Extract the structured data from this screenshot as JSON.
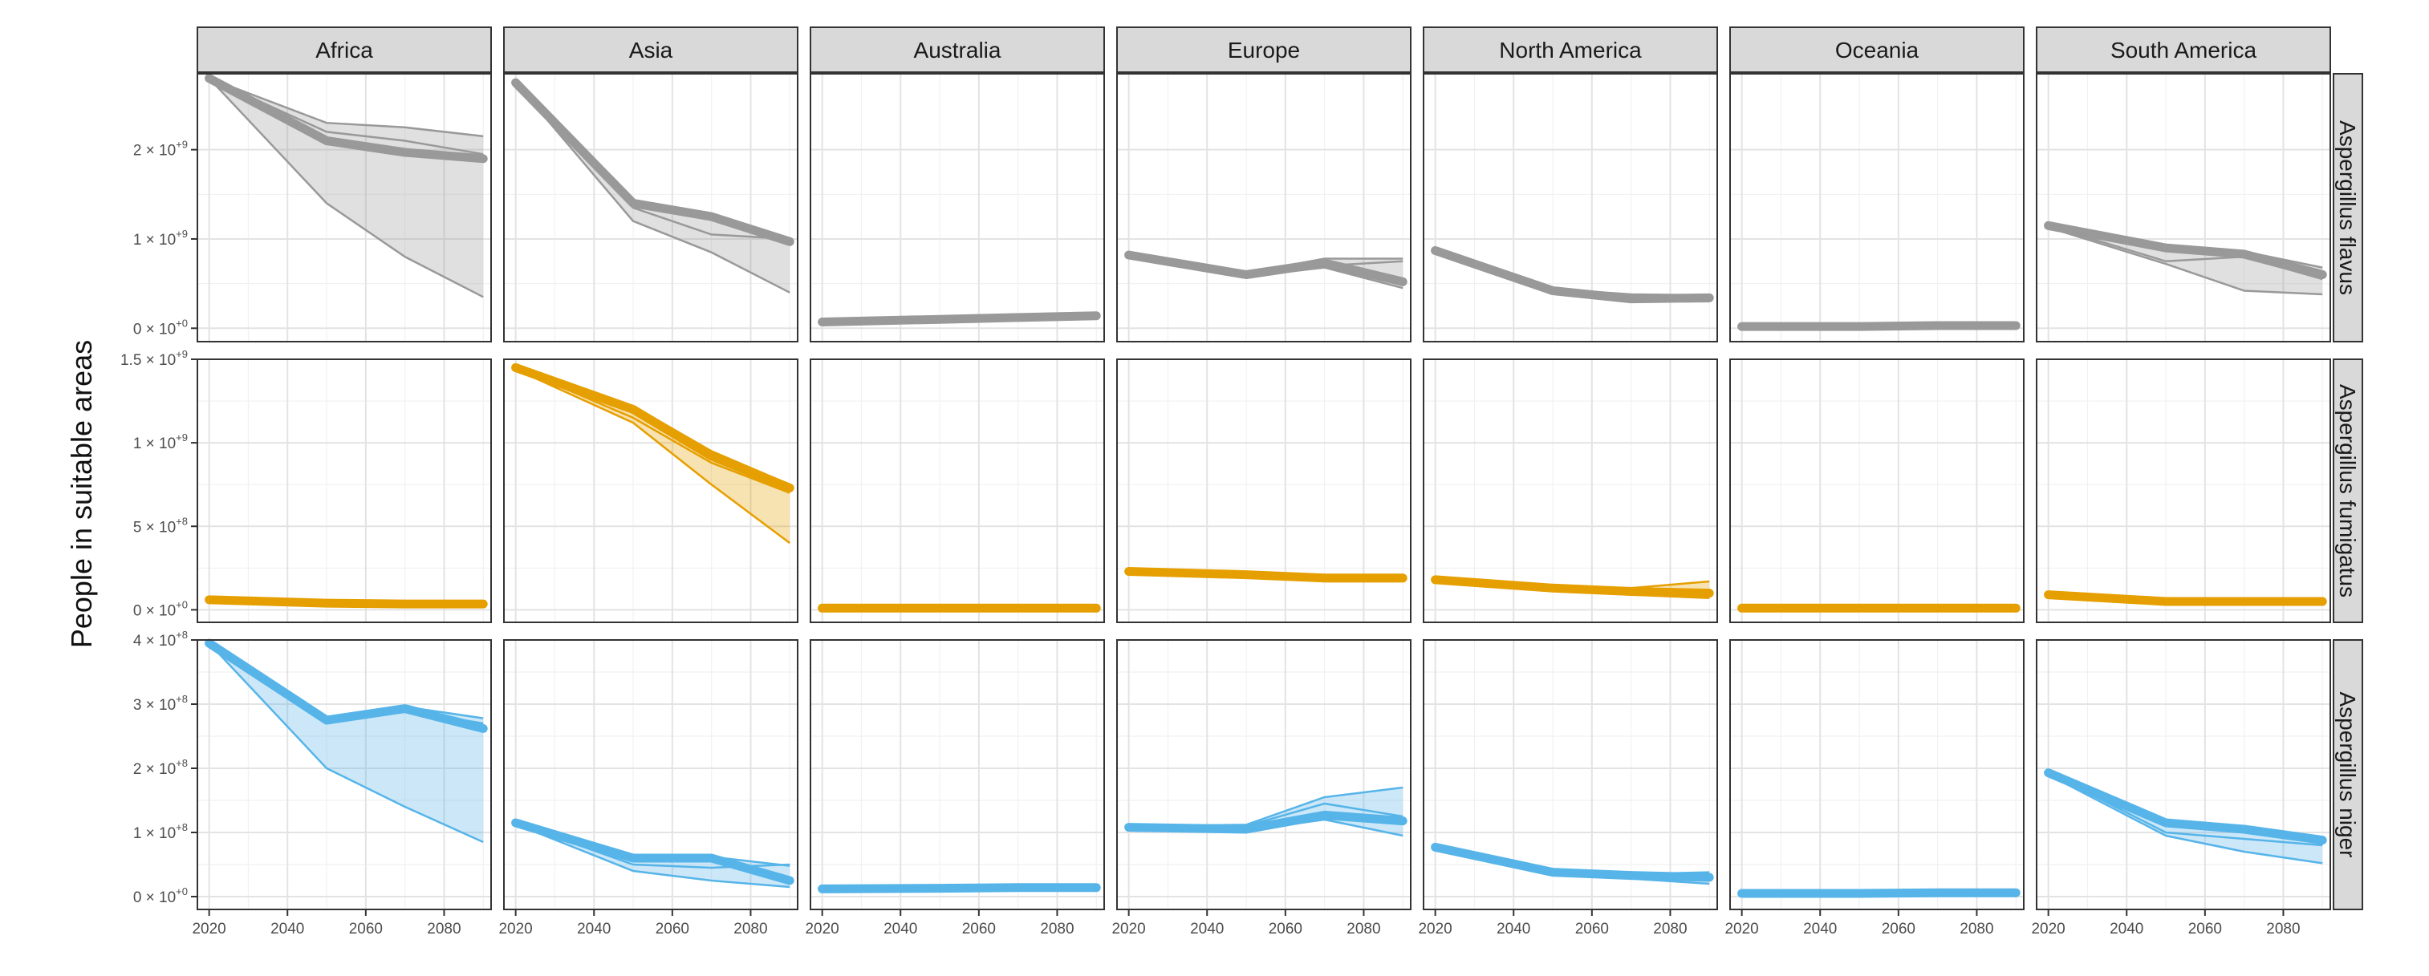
{
  "chart_data": {
    "type": "line",
    "ylabel": "People in suitable areas",
    "xlabel": "",
    "x_ticks": [
      "2020",
      "2040",
      "2060",
      "2080"
    ],
    "xlim": [
      2017,
      2092
    ],
    "x": [
      2020,
      2050,
      2070,
      2090
    ],
    "columns": [
      "Africa",
      "Asia",
      "Australia",
      "Europe",
      "North America",
      "Oceania",
      "South America"
    ],
    "rows": [
      {
        "name": "Aspergillus flavus",
        "color": "#999999",
        "ylim": [
          -150000000.0,
          2850000000.0
        ],
        "y_ticks": [
          {
            "value": 0,
            "mantissa": "0",
            "exponent": "+0"
          },
          {
            "value": 1000000000.0,
            "mantissa": "1",
            "exponent": "+9"
          },
          {
            "value": 2000000000.0,
            "mantissa": "2",
            "exponent": "+9"
          }
        ],
        "series": {
          "Africa": {
            "mean": [
              2800000000.0,
              2100000000.0,
              1970000000.0,
              1900000000.0
            ],
            "low": [
              2800000000.0,
              1400000000.0,
              800000000.0,
              350000000.0
            ],
            "high": [
              2800000000.0,
              2300000000.0,
              2250000000.0,
              2150000000.0
            ],
            "extra": [
              2800000000.0,
              2200000000.0,
              2100000000.0,
              1950000000.0
            ]
          },
          "Asia": {
            "mean": [
              2750000000.0,
              1400000000.0,
              1250000000.0,
              970000000.0
            ],
            "low": [
              2750000000.0,
              1200000000.0,
              850000000.0,
              400000000.0
            ],
            "high": [
              2750000000.0,
              1420000000.0,
              1280000000.0,
              1000000000.0
            ],
            "extra": [
              2750000000.0,
              1350000000.0,
              1050000000.0,
              1000000000.0
            ]
          },
          "Australia": {
            "mean": [
              70000000.0,
              100000000.0,
              120000000.0,
              140000000.0
            ],
            "low": [
              60000000.0,
              90000000.0,
              100000000.0,
              120000000.0
            ],
            "high": [
              80000000.0,
              120000000.0,
              140000000.0,
              160000000.0
            ],
            "extra": null
          },
          "Europe": {
            "mean": [
              820000000.0,
              600000000.0,
              730000000.0,
              520000000.0
            ],
            "low": [
              800000000.0,
              580000000.0,
              680000000.0,
              450000000.0
            ],
            "high": [
              840000000.0,
              620000000.0,
              780000000.0,
              780000000.0
            ],
            "extra": [
              820000000.0,
              600000000.0,
              700000000.0,
              750000000.0
            ]
          },
          "North America": {
            "mean": [
              870000000.0,
              420000000.0,
              330000000.0,
              340000000.0
            ],
            "low": [
              850000000.0,
              400000000.0,
              300000000.0,
              300000000.0
            ],
            "high": [
              890000000.0,
              440000000.0,
              380000000.0,
              370000000.0
            ],
            "extra": null
          },
          "Oceania": {
            "mean": [
              20000000.0,
              20000000.0,
              30000000.0,
              30000000.0
            ],
            "low": [
              10000000.0,
              10000000.0,
              20000000.0,
              20000000.0
            ],
            "high": [
              30000000.0,
              30000000.0,
              40000000.0,
              40000000.0
            ],
            "extra": null
          },
          "South America": {
            "mean": [
              1150000000.0,
              900000000.0,
              830000000.0,
              600000000.0
            ],
            "low": [
              1130000000.0,
              720000000.0,
              420000000.0,
              380000000.0
            ],
            "high": [
              1170000000.0,
              920000000.0,
              860000000.0,
              680000000.0
            ],
            "extra": [
              1150000000.0,
              750000000.0,
              800000000.0,
              550000000.0
            ]
          }
        }
      },
      {
        "name": "Aspergillus fumigatus",
        "color": "#E69F00",
        "ylim": [
          -75000000.0,
          1500000000.0
        ],
        "y_ticks": [
          {
            "value": 0,
            "mantissa": "0",
            "exponent": "+0"
          },
          {
            "value": 500000000.0,
            "mantissa": "5",
            "exponent": "+8"
          },
          {
            "value": 1000000000.0,
            "mantissa": "1",
            "exponent": "+9"
          },
          {
            "value": 1500000000.0,
            "mantissa": "1.5",
            "exponent": "+9"
          }
        ],
        "series": {
          "Africa": {
            "mean": [
              60000000.0,
              40000000.0,
              35000000.0,
              35000000.0
            ],
            "low": [
              50000000.0,
              30000000.0,
              30000000.0,
              30000000.0
            ],
            "high": [
              70000000.0,
              50000000.0,
              45000000.0,
              45000000.0
            ],
            "extra": null
          },
          "Asia": {
            "mean": [
              1450000000.0,
              1200000000.0,
              920000000.0,
              730000000.0
            ],
            "low": [
              1440000000.0,
              1120000000.0,
              750000000.0,
              400000000.0
            ],
            "high": [
              1460000000.0,
              1220000000.0,
              950000000.0,
              750000000.0
            ],
            "extra": [
              1450000000.0,
              1150000000.0,
              880000000.0,
              700000000.0
            ]
          },
          "Australia": {
            "mean": [
              10000000.0,
              10000000.0,
              10000000.0,
              10000000.0
            ],
            "low": [
              5000000.0,
              5000000.0,
              5000000.0,
              5000000.0
            ],
            "high": [
              15000000.0,
              15000000.0,
              15000000.0,
              15000000.0
            ],
            "extra": null
          },
          "Europe": {
            "mean": [
              230000000.0,
              210000000.0,
              190000000.0,
              190000000.0
            ],
            "low": [
              220000000.0,
              200000000.0,
              170000000.0,
              170000000.0
            ],
            "high": [
              240000000.0,
              220000000.0,
              210000000.0,
              200000000.0
            ],
            "extra": null
          },
          "North America": {
            "mean": [
              180000000.0,
              130000000.0,
              110000000.0,
              100000000.0
            ],
            "low": [
              170000000.0,
              120000000.0,
              90000000.0,
              70000000.0
            ],
            "high": [
              190000000.0,
              140000000.0,
              130000000.0,
              170000000.0
            ],
            "extra": null
          },
          "Oceania": {
            "mean": [
              10000000.0,
              10000000.0,
              10000000.0,
              10000000.0
            ],
            "low": [
              5000000.0,
              5000000.0,
              5000000.0,
              5000000.0
            ],
            "high": [
              15000000.0,
              15000000.0,
              15000000.0,
              15000000.0
            ],
            "extra": null
          },
          "South America": {
            "mean": [
              90000000.0,
              50000000.0,
              50000000.0,
              50000000.0
            ],
            "low": [
              80000000.0,
              40000000.0,
              40000000.0,
              40000000.0
            ],
            "high": [
              100000000.0,
              60000000.0,
              60000000.0,
              60000000.0
            ],
            "extra": null
          }
        }
      },
      {
        "name": "Aspergillus niger",
        "color": "#56B4E9",
        "ylim": [
          -20000000.0,
          400000000.0
        ],
        "y_ticks": [
          {
            "value": 0,
            "mantissa": "0",
            "exponent": "+0"
          },
          {
            "value": 100000000.0,
            "mantissa": "1",
            "exponent": "+8"
          },
          {
            "value": 200000000.0,
            "mantissa": "2",
            "exponent": "+8"
          },
          {
            "value": 300000000.0,
            "mantissa": "3",
            "exponent": "+8"
          },
          {
            "value": 400000000.0,
            "mantissa": "4",
            "exponent": "+8"
          }
        ],
        "series": {
          "Africa": {
            "mean": [
              395000000.0,
              275000000.0,
              293000000.0,
              262000000.0
            ],
            "low": [
              395000000.0,
              200000000.0,
              140000000.0,
              85000000.0
            ],
            "high": [
              395000000.0,
              278000000.0,
              296000000.0,
              278000000.0
            ],
            "extra": [
              395000000.0,
              270000000.0,
              290000000.0,
              270000000.0
            ]
          },
          "Asia": {
            "mean": [
              115000000.0,
              60000000.0,
              60000000.0,
              25000000.0
            ],
            "low": [
              113000000.0,
              40000000.0,
              25000000.0,
              15000000.0
            ],
            "high": [
              117000000.0,
              62000000.0,
              62000000.0,
              48000000.0
            ],
            "extra": [
              115000000.0,
              50000000.0,
              45000000.0,
              50000000.0
            ]
          },
          "Australia": {
            "mean": [
              12000000.0,
              13000000.0,
              14000000.0,
              14000000.0
            ],
            "low": [
              10000000.0,
              11000000.0,
              12000000.0,
              12000000.0
            ],
            "high": [
              14000000.0,
              15000000.0,
              16000000.0,
              16000000.0
            ],
            "extra": null
          },
          "Europe": {
            "mean": [
              108000000.0,
              105000000.0,
              127000000.0,
              118000000.0
            ],
            "low": [
              106000000.0,
              103000000.0,
              120000000.0,
              95000000.0
            ],
            "high": [
              110000000.0,
              112000000.0,
              155000000.0,
              170000000.0
            ],
            "extra": [
              108000000.0,
              110000000.0,
              145000000.0,
              125000000.0
            ]
          },
          "North America": {
            "mean": [
              77000000.0,
              38000000.0,
              33000000.0,
              30000000.0
            ],
            "low": [
              75000000.0,
              36000000.0,
              28000000.0,
              20000000.0
            ],
            "high": [
              79000000.0,
              40000000.0,
              35000000.0,
              38000000.0
            ],
            "extra": null
          },
          "Oceania": {
            "mean": [
              5000000.0,
              5000000.0,
              6000000.0,
              6000000.0
            ],
            "low": [
              3000000.0,
              3000000.0,
              4000000.0,
              4000000.0
            ],
            "high": [
              7000000.0,
              7000000.0,
              8000000.0,
              8000000.0
            ],
            "extra": null
          },
          "South America": {
            "mean": [
              193000000.0,
              115000000.0,
              105000000.0,
              88000000.0
            ],
            "low": [
              190000000.0,
              95000000.0,
              70000000.0,
              52000000.0
            ],
            "high": [
              196000000.0,
              117000000.0,
              107000000.0,
              90000000.0
            ],
            "extra": [
              193000000.0,
              100000000.0,
              90000000.0,
              80000000.0
            ]
          }
        }
      }
    ]
  }
}
